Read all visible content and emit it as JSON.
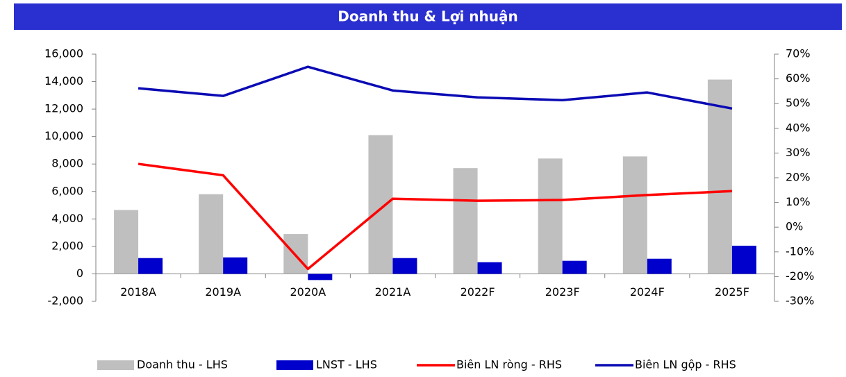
{
  "chart_data": {
    "type": "combo",
    "title": "Doanh thu & Lợi nhuận",
    "categories": [
      "2018A",
      "2019A",
      "2020A",
      "2021A",
      "2022F",
      "2023F",
      "2024F",
      "2025F"
    ],
    "series": [
      {
        "name": "Doanh thu - LHS",
        "type": "bar",
        "axis": "y",
        "color": "#bfbfbf",
        "values": [
          4650,
          5800,
          2900,
          10100,
          7700,
          8400,
          8550,
          14150
        ]
      },
      {
        "name": "LNST - LHS",
        "type": "bar",
        "axis": "y",
        "color": "#0000cc",
        "values": [
          1150,
          1200,
          -450,
          1150,
          850,
          950,
          1100,
          2050
        ]
      },
      {
        "name": "Biên LN ròng - RHS",
        "type": "line",
        "axis": "y2",
        "color": "#ff0000",
        "values": [
          25.6,
          21,
          -16.9,
          11.5,
          10.7,
          11,
          13,
          14.6
        ]
      },
      {
        "name": "Biên LN gộp - RHS",
        "type": "line",
        "axis": "y2",
        "color": "#0a0ab4",
        "values": [
          56.2,
          53.1,
          64.9,
          55.3,
          52.5,
          51.4,
          54.5,
          48
        ]
      }
    ],
    "ylim": [
      -2000,
      16000
    ],
    "yticks": [
      {
        "value": -2000,
        "label": "-2,000"
      },
      0,
      {
        "value": 2000,
        "label": "2,000"
      },
      {
        "value": 4000,
        "label": "4,000"
      },
      {
        "value": 6000,
        "label": "6,000"
      },
      {
        "value": 8000,
        "label": "8,000"
      },
      {
        "value": 10000,
        "label": "10,000"
      },
      {
        "value": 12000,
        "label": "12,000"
      },
      {
        "value": 14000,
        "label": "14,000"
      },
      {
        "value": 16000,
        "label": "16,000"
      }
    ],
    "y2lim": [
      -30,
      70
    ],
    "y2ticks": [
      {
        "value": -30,
        "label": "-30%"
      },
      {
        "value": -20,
        "label": "-20%"
      },
      {
        "value": -10,
        "label": "-10%"
      },
      {
        "value": 0,
        "label": "0%"
      },
      {
        "value": 10,
        "label": "10%"
      },
      {
        "value": 20,
        "label": "20%"
      },
      {
        "value": 30,
        "label": "30%"
      },
      {
        "value": 40,
        "label": "40%"
      },
      {
        "value": 50,
        "label": "50%"
      },
      {
        "value": 60,
        "label": "60%"
      },
      {
        "value": 70,
        "label": "70%"
      }
    ],
    "grid": false,
    "legend": "bottom"
  }
}
